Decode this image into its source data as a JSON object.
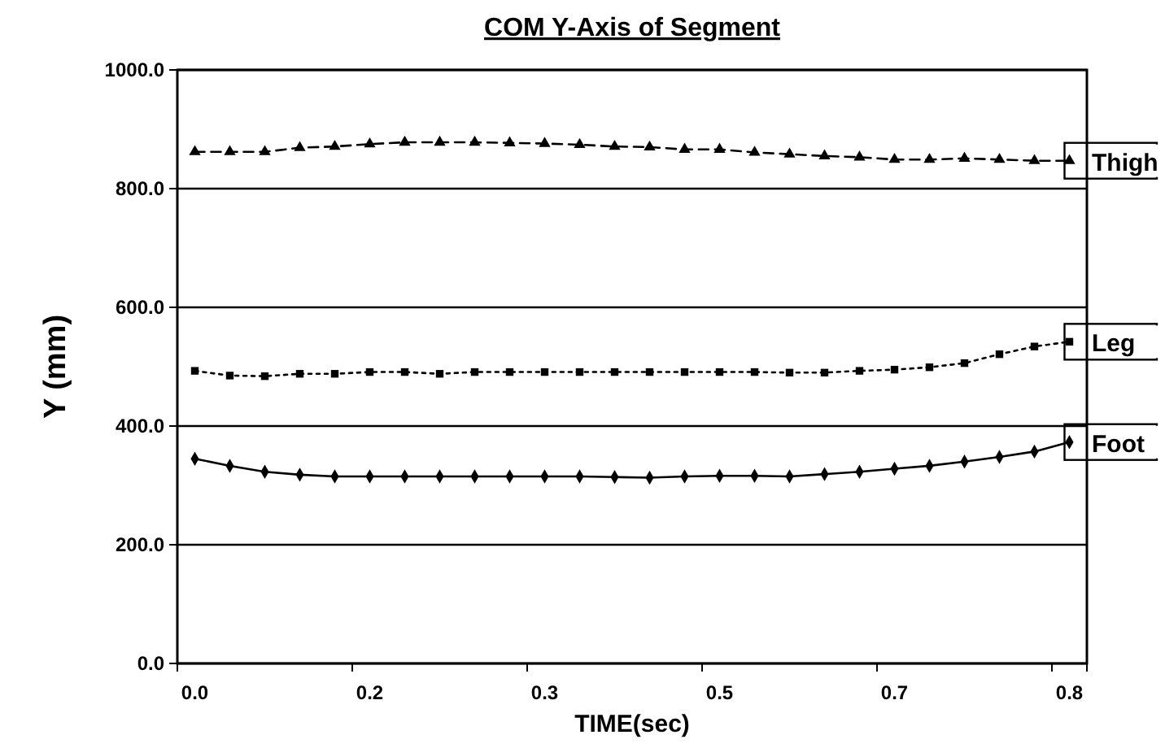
{
  "chart_data": {
    "type": "line",
    "title": "COM Y-Axis of Segment",
    "xlabel": "TIME(sec)",
    "ylabel": "Y (mm)",
    "categories": [
      "0.0",
      null,
      null,
      null,
      null,
      "0.2",
      null,
      null,
      null,
      null,
      "0.3",
      null,
      null,
      null,
      null,
      "0.5",
      null,
      null,
      null,
      null,
      "0.7",
      null,
      null,
      null,
      null,
      "0.8"
    ],
    "series": [
      {
        "name": "Thigh",
        "color": "#000000",
        "marker": "triangle",
        "line_style": "dashed",
        "values": [
          862,
          862,
          862,
          869,
          871,
          875,
          878,
          878,
          878,
          877,
          876,
          874,
          871,
          870,
          866,
          866,
          861,
          858,
          855,
          853,
          849,
          849,
          851,
          849,
          847,
          847
        ]
      },
      {
        "name": "Leg",
        "color": "#000000",
        "marker": "square",
        "line_style": "dotted",
        "values": [
          493,
          485,
          484,
          488,
          488,
          491,
          491,
          488,
          491,
          491,
          491,
          491,
          491,
          491,
          491,
          491,
          491,
          490,
          490,
          493,
          495,
          499,
          506,
          521,
          534,
          542
        ]
      },
      {
        "name": "Foot",
        "color": "#000000",
        "marker": "diamond",
        "line_style": "solid",
        "values": [
          345,
          333,
          323,
          318,
          315,
          315,
          315,
          315,
          315,
          315,
          315,
          315,
          314,
          313,
          315,
          316,
          316,
          315,
          319,
          323,
          328,
          333,
          340,
          348,
          357,
          373
        ]
      }
    ],
    "ylim": [
      0,
      1000
    ],
    "yticks": [
      {
        "value": 0,
        "label": "0.0"
      },
      {
        "value": 200,
        "label": "200.0"
      },
      {
        "value": 400,
        "label": "400.0"
      },
      {
        "value": 600,
        "label": "600.0"
      },
      {
        "value": 800,
        "label": "800.0"
      },
      {
        "value": 1000,
        "label": "1000.0"
      }
    ],
    "grid": "y",
    "legend": false
  }
}
